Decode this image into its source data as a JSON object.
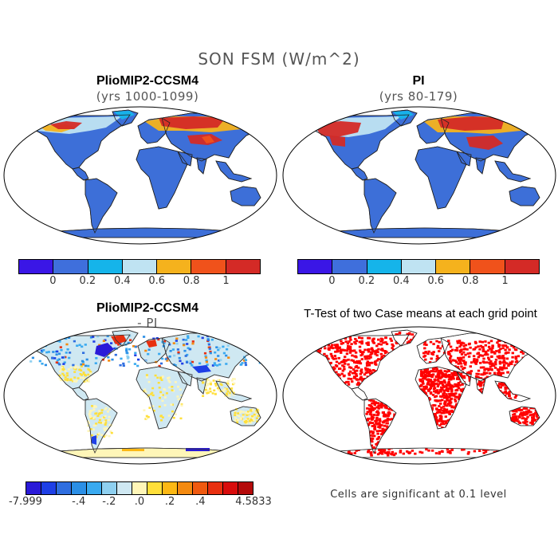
{
  "figure": {
    "title": "SON FSM (W/m^2)"
  },
  "panels": {
    "top_left": {
      "title": "PlioMIP2-CCSM4",
      "subtitle": "(yrs 1000-1099)"
    },
    "top_right": {
      "title": "PI",
      "subtitle": "(yrs 80-179)"
    },
    "bottom_left": {
      "title": "PlioMIP2-CCSM4",
      "subtitle": "- PI"
    },
    "bottom_right": {
      "title": "T-Test of two Case means at each grid point",
      "note": "Cells are significant at 0.1 level"
    }
  },
  "colorbar_abs": {
    "colors": [
      "#3a16e6",
      "#3f6fdc",
      "#15b4ea",
      "#bfe3f2",
      "#f5b21d",
      "#f0521b",
      "#d42a26"
    ],
    "labels": [
      "0",
      "0.2",
      "0.4",
      "0.6",
      "0.8",
      "1"
    ]
  },
  "colorbar_diff": {
    "colors": [
      "#2a1ad8",
      "#1e3fe6",
      "#2f6ee0",
      "#2b8fe6",
      "#3aaaf0",
      "#8fd0f0",
      "#cfe8f2",
      "#fff6b8",
      "#ffdf3a",
      "#fcb814",
      "#f48a10",
      "#f05a10",
      "#e83010",
      "#d80c0c",
      "#b40a0a"
    ],
    "labels": [
      "-7.999",
      "-.4",
      "-.2",
      ".0",
      ".2",
      ".4",
      "4.5833"
    ]
  },
  "colors": {
    "land_base": "#3d6fd8",
    "diff_land_base": "#cfe8f2",
    "significant": "#ff0000",
    "ocean": "#ffffff"
  }
}
